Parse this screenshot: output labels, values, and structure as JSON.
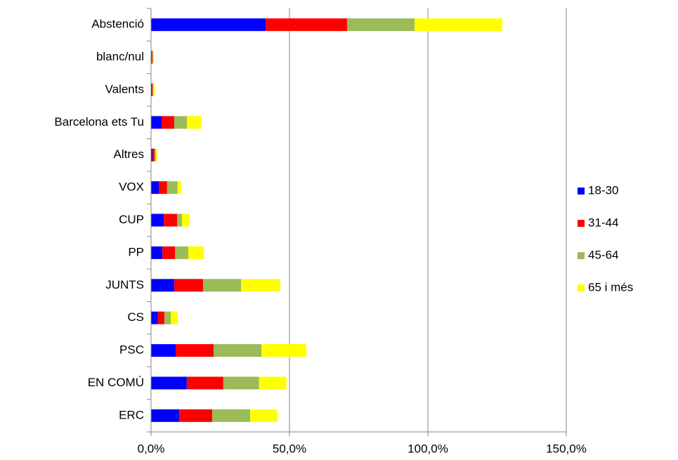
{
  "chart_data": {
    "type": "stacked_bar_horizontal",
    "categories": [
      "Abstenció",
      "blanc/nul",
      "Valents",
      "Barcelona ets Tu",
      "Altres",
      "VOX",
      "CUP",
      "PP",
      "JUNTS",
      "CS",
      "PSC",
      "EN COMÚ",
      "ERC"
    ],
    "series": [
      {
        "name": "18-30",
        "color": "#0000ff",
        "values": [
          41.4,
          0.1,
          0.3,
          3.8,
          0.5,
          2.8,
          4.6,
          4.1,
          8.4,
          2.5,
          8.9,
          12.9,
          10.2
        ]
      },
      {
        "name": "31-44",
        "color": "#ff0000",
        "values": [
          29.4,
          0.4,
          0.3,
          4.6,
          0.8,
          3.0,
          4.8,
          4.6,
          10.4,
          2.3,
          13.7,
          13.2,
          11.9
        ]
      },
      {
        "name": "45-64",
        "color": "#9bbb59",
        "values": [
          24.4,
          0.2,
          0.2,
          4.6,
          0.4,
          3.8,
          1.8,
          4.8,
          13.7,
          2.3,
          17.3,
          12.9,
          13.7
        ]
      },
      {
        "name": "65 i més",
        "color": "#ffff00",
        "values": [
          31.7,
          0.3,
          0.5,
          5.1,
          0.5,
          1.3,
          2.8,
          5.6,
          14.2,
          2.5,
          16.2,
          9.9,
          9.9
        ]
      }
    ],
    "xlim": [
      0,
      150
    ],
    "xticks": [
      {
        "value": 0,
        "label": "0,0%"
      },
      {
        "value": 50,
        "label": "50,0%"
      },
      {
        "value": 100,
        "label": "100,0%"
      },
      {
        "value": 150,
        "label": "150,0%"
      }
    ],
    "grid": true,
    "legend": "right"
  }
}
